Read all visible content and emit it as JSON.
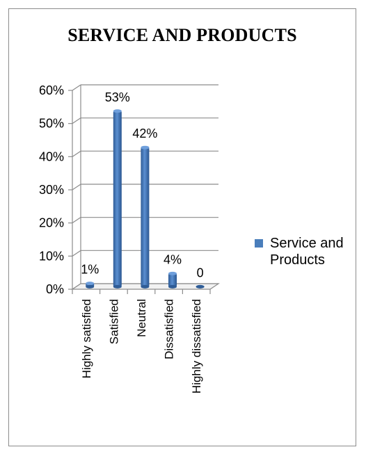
{
  "chart_data": {
    "type": "bar",
    "title": "SERVICE AND PRODUCTS",
    "categories": [
      "Highly satisfied",
      "Satisfied",
      "Neutral",
      "Dissatisfied",
      "Highly dissatisfied"
    ],
    "series": [
      {
        "name": "Service and Products",
        "values": [
          1,
          53,
          42,
          4,
          0
        ]
      }
    ],
    "data_labels": [
      "1%",
      "53%",
      "42%",
      "4%",
      "0"
    ],
    "yticks": [
      "0%",
      "10%",
      "20%",
      "30%",
      "40%",
      "50%",
      "60%"
    ],
    "ylim": [
      0,
      60
    ],
    "grid": true,
    "legend_position": "right",
    "series_color": "#4a7ebb"
  }
}
